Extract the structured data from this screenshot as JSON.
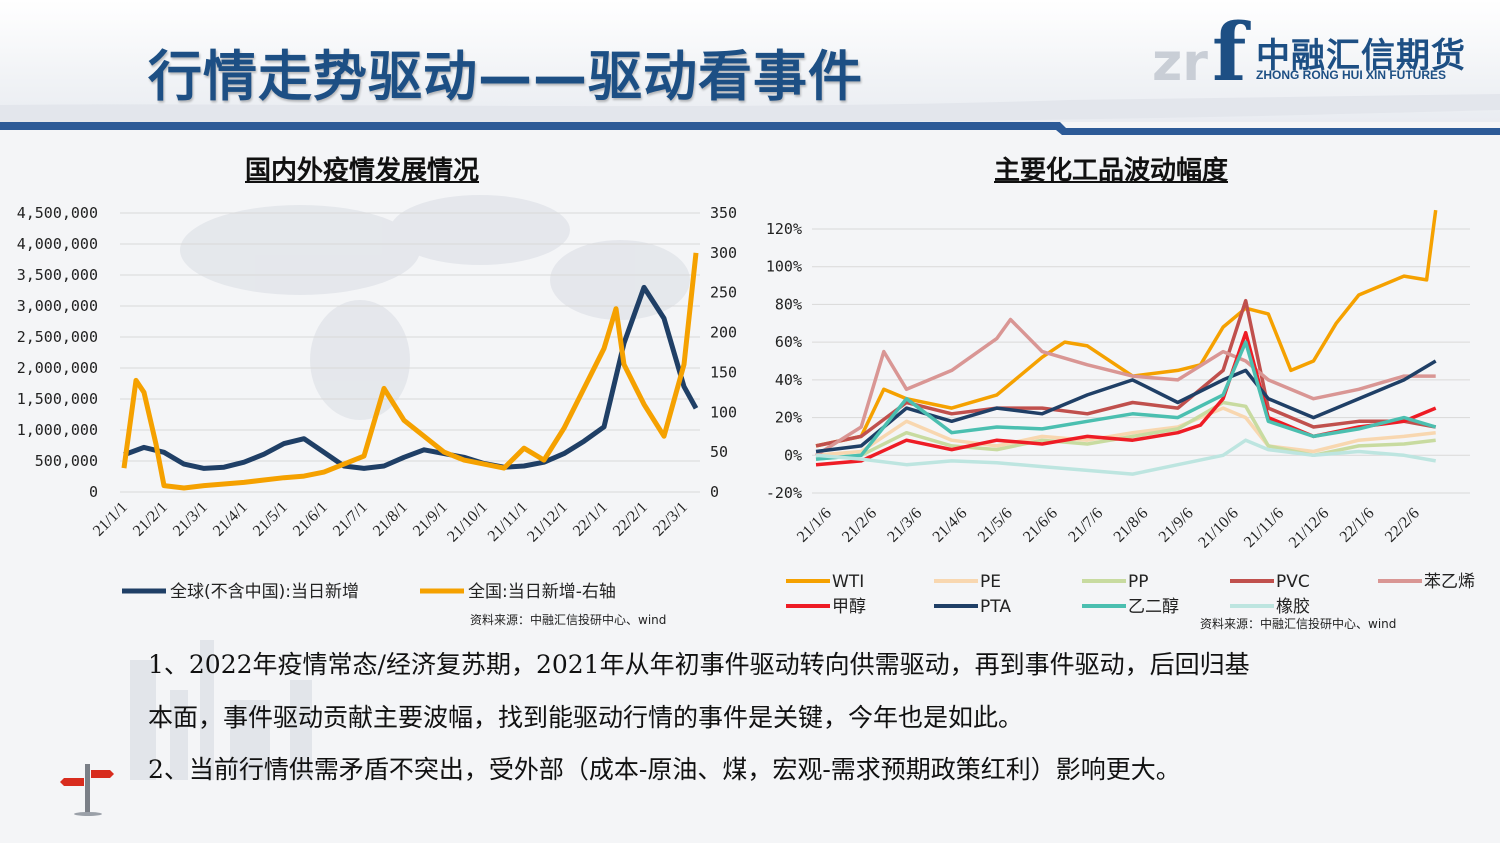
{
  "slide": {
    "title": "行情走势驱动——驱动看事件",
    "logo_cn": "中融汇信期货",
    "logo_en": "ZHONG RONG HUI XIN FUTURES",
    "logo_letters": "zr",
    "logo_f": "f"
  },
  "colors": {
    "brand_blue": "#1d4f84",
    "accent_band": "#2c5a97"
  },
  "left_chart_title": "国内外疫情发展情况",
  "right_chart_title": "主要化工品波动幅度",
  "body": {
    "p1_line1": "1、2022年疫情常态/经济复苏期，2021年从年初事件驱动转向供需驱动，再到事件驱动，后回归基",
    "p1_line2": "本面，事件驱动贡献主要波幅，找到能驱动行情的事件是关键，今年也是如此。",
    "p2": "2、当前行情供需矛盾不突出，受外部（成本-原油、煤，宏观-需求预期政策红利）影响更大。"
  },
  "chart_data": [
    {
      "type": "line",
      "title": "国内外疫情发展情况",
      "source": "资料来源：中融汇信投研中心、wind",
      "x_ticks": [
        "21/1/1",
        "21/2/1",
        "21/3/1",
        "21/4/1",
        "21/5/1",
        "21/6/1",
        "21/7/1",
        "21/8/1",
        "21/9/1",
        "21/10/1",
        "21/11/1",
        "21/12/1",
        "22/1/1",
        "22/2/1",
        "22/3/1"
      ],
      "y_left_ticks": [
        "4,500,000",
        "4,000,000",
        "3,500,000",
        "3,000,000",
        "2,500,000",
        "2,000,000",
        "1,500,000",
        "1,000,000",
        "500,000",
        "0"
      ],
      "y_right_ticks": [
        "350",
        "300",
        "250",
        "200",
        "150",
        "100",
        "50",
        "0"
      ],
      "ylim_left": [
        0,
        4500000
      ],
      "ylim_right": [
        0,
        350
      ],
      "grid": true,
      "legend_position": "bottom",
      "series": [
        {
          "name": "全球(不含中国):当日新增",
          "axis": "left",
          "color": "#1f3f66",
          "points": [
            [
              0,
              600000
            ],
            [
              0.5,
              720000
            ],
            [
              1,
              640000
            ],
            [
              1.5,
              450000
            ],
            [
              2,
              380000
            ],
            [
              2.5,
              400000
            ],
            [
              3,
              480000
            ],
            [
              3.5,
              610000
            ],
            [
              4,
              780000
            ],
            [
              4.5,
              860000
            ],
            [
              5,
              640000
            ],
            [
              5.5,
              420000
            ],
            [
              6,
              380000
            ],
            [
              6.5,
              420000
            ],
            [
              7,
              560000
            ],
            [
              7.5,
              680000
            ],
            [
              8,
              620000
            ],
            [
              8.5,
              560000
            ],
            [
              9,
              460000
            ],
            [
              9.5,
              400000
            ],
            [
              10,
              420000
            ],
            [
              10.5,
              480000
            ],
            [
              11,
              620000
            ],
            [
              11.5,
              820000
            ],
            [
              12,
              1050000
            ],
            [
              12.5,
              2400000
            ],
            [
              13,
              3300000
            ],
            [
              13.5,
              2800000
            ],
            [
              14,
              1700000
            ],
            [
              14.3,
              1350000
            ]
          ]
        },
        {
          "name": "全国:当日新增-右轴",
          "axis": "right",
          "color": "#f5a100",
          "points": [
            [
              0,
              30
            ],
            [
              0.3,
              140
            ],
            [
              0.5,
              125
            ],
            [
              0.8,
              60
            ],
            [
              1,
              8
            ],
            [
              1.5,
              5
            ],
            [
              2,
              8
            ],
            [
              2.5,
              10
            ],
            [
              3,
              12
            ],
            [
              3.5,
              15
            ],
            [
              4,
              18
            ],
            [
              4.5,
              20
            ],
            [
              5,
              25
            ],
            [
              5.5,
              35
            ],
            [
              6,
              45
            ],
            [
              6.5,
              130
            ],
            [
              7,
              90
            ],
            [
              7.5,
              70
            ],
            [
              8,
              50
            ],
            [
              8.5,
              40
            ],
            [
              9,
              35
            ],
            [
              9.5,
              30
            ],
            [
              10,
              55
            ],
            [
              10.5,
              40
            ],
            [
              11,
              80
            ],
            [
              11.5,
              130
            ],
            [
              12,
              180
            ],
            [
              12.3,
              230
            ],
            [
              12.5,
              160
            ],
            [
              13,
              110
            ],
            [
              13.5,
              70
            ],
            [
              14,
              160
            ],
            [
              14.3,
              300
            ]
          ]
        }
      ]
    },
    {
      "type": "line",
      "title": "主要化工品波动幅度",
      "source": "资料来源：中融汇信投研中心、wind",
      "x_ticks": [
        "21/1/6",
        "21/2/6",
        "21/3/6",
        "21/4/6",
        "21/5/6",
        "21/6/6",
        "21/7/6",
        "21/8/6",
        "21/9/6",
        "21/10/6",
        "21/11/6",
        "21/12/6",
        "22/1/6",
        "22/2/6"
      ],
      "y_ticks": [
        "120%",
        "100%",
        "80%",
        "60%",
        "40%",
        "20%",
        "0%",
        "-20%"
      ],
      "ylim": [
        -20,
        130
      ],
      "grid": true,
      "legend_position": "bottom",
      "series": [
        {
          "name": "WTI",
          "color": "#f5a100",
          "points": [
            [
              0,
              5
            ],
            [
              1,
              10
            ],
            [
              1.5,
              35
            ],
            [
              2,
              30
            ],
            [
              3,
              25
            ],
            [
              4,
              32
            ],
            [
              5,
              52
            ],
            [
              5.5,
              60
            ],
            [
              6,
              58
            ],
            [
              7,
              42
            ],
            [
              8,
              45
            ],
            [
              8.5,
              48
            ],
            [
              9,
              68
            ],
            [
              9.5,
              78
            ],
            [
              10,
              75
            ],
            [
              10.5,
              45
            ],
            [
              11,
              50
            ],
            [
              11.5,
              70
            ],
            [
              12,
              85
            ],
            [
              13,
              95
            ],
            [
              13.5,
              93
            ],
            [
              13.7,
              130
            ]
          ]
        },
        {
          "name": "PE",
          "color": "#f8d7b0",
          "points": [
            [
              0,
              0
            ],
            [
              1,
              2
            ],
            [
              2,
              18
            ],
            [
              3,
              8
            ],
            [
              4,
              5
            ],
            [
              5,
              10
            ],
            [
              6,
              8
            ],
            [
              7,
              12
            ],
            [
              8,
              15
            ],
            [
              9,
              25
            ],
            [
              9.5,
              20
            ],
            [
              10,
              5
            ],
            [
              11,
              2
            ],
            [
              12,
              8
            ],
            [
              13,
              10
            ],
            [
              13.7,
              12
            ]
          ]
        },
        {
          "name": "PP",
          "color": "#c8dba0",
          "points": [
            [
              0,
              -2
            ],
            [
              1,
              0
            ],
            [
              2,
              12
            ],
            [
              3,
              5
            ],
            [
              4,
              3
            ],
            [
              5,
              8
            ],
            [
              6,
              6
            ],
            [
              7,
              10
            ],
            [
              8,
              14
            ],
            [
              9,
              28
            ],
            [
              9.5,
              26
            ],
            [
              10,
              5
            ],
            [
              11,
              0
            ],
            [
              12,
              5
            ],
            [
              13,
              6
            ],
            [
              13.7,
              8
            ]
          ]
        },
        {
          "name": "PVC",
          "color": "#c0504d",
          "points": [
            [
              0,
              5
            ],
            [
              1,
              10
            ],
            [
              2,
              28
            ],
            [
              3,
              22
            ],
            [
              4,
              25
            ],
            [
              5,
              25
            ],
            [
              6,
              22
            ],
            [
              7,
              28
            ],
            [
              8,
              25
            ],
            [
              9,
              45
            ],
            [
              9.5,
              82
            ],
            [
              10,
              25
            ],
            [
              11,
              15
            ],
            [
              12,
              18
            ],
            [
              13,
              18
            ],
            [
              13.7,
              15
            ]
          ]
        },
        {
          "name": "苯乙烯",
          "color": "#d99694",
          "points": [
            [
              0,
              0
            ],
            [
              1,
              15
            ],
            [
              1.5,
              55
            ],
            [
              2,
              35
            ],
            [
              3,
              45
            ],
            [
              4,
              62
            ],
            [
              4.3,
              72
            ],
            [
              5,
              55
            ],
            [
              6,
              48
            ],
            [
              7,
              42
            ],
            [
              8,
              40
            ],
            [
              9,
              55
            ],
            [
              9.5,
              50
            ],
            [
              10,
              40
            ],
            [
              11,
              30
            ],
            [
              12,
              35
            ],
            [
              13,
              42
            ],
            [
              13.7,
              42
            ]
          ]
        },
        {
          "name": "甲醇",
          "color": "#ee1c25",
          "points": [
            [
              0,
              -5
            ],
            [
              1,
              -3
            ],
            [
              2,
              8
            ],
            [
              3,
              3
            ],
            [
              4,
              8
            ],
            [
              5,
              6
            ],
            [
              6,
              10
            ],
            [
              7,
              8
            ],
            [
              8,
              12
            ],
            [
              8.5,
              16
            ],
            [
              9,
              30
            ],
            [
              9.5,
              65
            ],
            [
              10,
              20
            ],
            [
              11,
              10
            ],
            [
              12,
              15
            ],
            [
              13,
              18
            ],
            [
              13.7,
              25
            ]
          ]
        },
        {
          "name": "PTA",
          "color": "#1f3f66",
          "points": [
            [
              0,
              2
            ],
            [
              1,
              5
            ],
            [
              2,
              25
            ],
            [
              3,
              18
            ],
            [
              4,
              25
            ],
            [
              5,
              22
            ],
            [
              6,
              32
            ],
            [
              7,
              40
            ],
            [
              8,
              28
            ],
            [
              9,
              40
            ],
            [
              9.5,
              45
            ],
            [
              10,
              30
            ],
            [
              11,
              20
            ],
            [
              12,
              30
            ],
            [
              13,
              40
            ],
            [
              13.7,
              50
            ]
          ]
        },
        {
          "name": "乙二醇",
          "color": "#4bbfb0",
          "points": [
            [
              0,
              -2
            ],
            [
              1,
              0
            ],
            [
              2,
              30
            ],
            [
              3,
              12
            ],
            [
              4,
              15
            ],
            [
              5,
              14
            ],
            [
              6,
              18
            ],
            [
              7,
              22
            ],
            [
              8,
              20
            ],
            [
              9,
              32
            ],
            [
              9.5,
              60
            ],
            [
              10,
              18
            ],
            [
              11,
              10
            ],
            [
              12,
              14
            ],
            [
              13,
              20
            ],
            [
              13.7,
              15
            ]
          ]
        },
        {
          "name": "橡胶",
          "color": "#bde5e0",
          "points": [
            [
              0,
              0
            ],
            [
              1,
              -2
            ],
            [
              2,
              -5
            ],
            [
              3,
              -3
            ],
            [
              4,
              -4
            ],
            [
              5,
              -6
            ],
            [
              6,
              -8
            ],
            [
              7,
              -10
            ],
            [
              8,
              -5
            ],
            [
              9,
              0
            ],
            [
              9.5,
              8
            ],
            [
              10,
              3
            ],
            [
              11,
              0
            ],
            [
              12,
              2
            ],
            [
              13,
              0
            ],
            [
              13.7,
              -3
            ]
          ]
        }
      ]
    }
  ]
}
